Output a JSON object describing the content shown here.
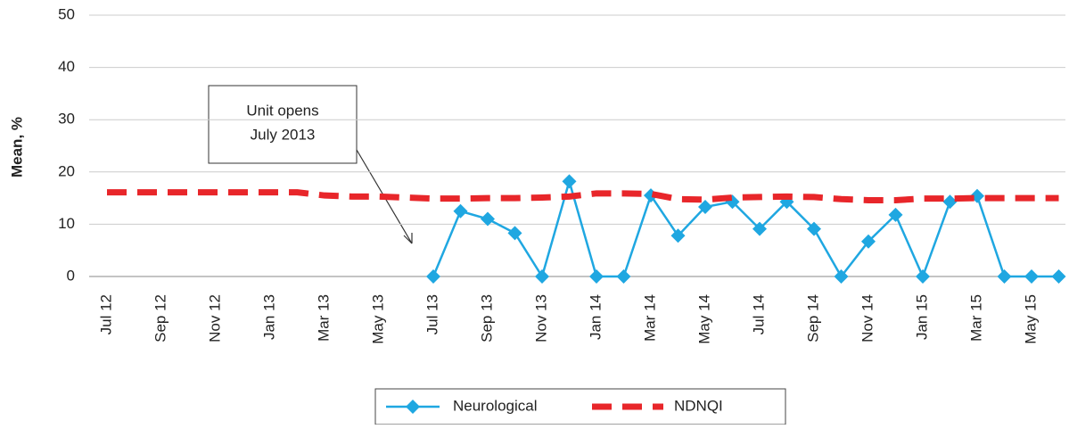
{
  "chart_data": {
    "type": "line",
    "y_label": "Mean, %",
    "annotation": [
      "Unit opens",
      "July 2013"
    ],
    "categories": [
      "Jul 12",
      null,
      "Sep 12",
      null,
      "Nov 12",
      null,
      "Jan 13",
      null,
      "Mar 13",
      null,
      "May 13",
      null,
      "Jul 13",
      null,
      "Sep 13",
      null,
      "Nov 13",
      null,
      "Jan 14",
      null,
      "Mar 14",
      null,
      "May 14",
      null,
      "Jul 14",
      null,
      "Sep 14",
      null,
      "Nov 14",
      null,
      "Jan 15",
      null,
      "Mar 15",
      null,
      "May 15",
      null
    ],
    "series": [
      {
        "name": "Neurological",
        "color": "#1fa7e1",
        "style": "solid-diamond",
        "values": [
          null,
          null,
          null,
          null,
          null,
          null,
          null,
          null,
          null,
          null,
          null,
          null,
          0,
          12.5,
          11,
          8.3,
          0,
          18.2,
          0,
          0,
          15.5,
          7.8,
          13.3,
          14.3,
          9.1,
          14.3,
          9.1,
          0,
          6.7,
          11.8,
          0,
          14.3,
          15.4,
          0,
          0,
          0
        ]
      },
      {
        "name": "NDNQI",
        "color": "#e8262a",
        "style": "dashed",
        "values": [
          16.1,
          16.1,
          16.1,
          16.1,
          16.1,
          16.1,
          16.1,
          16.1,
          15.5,
          15.3,
          15.3,
          15.1,
          14.9,
          14.9,
          15,
          15,
          15.1,
          15.3,
          15.9,
          15.9,
          15.8,
          14.8,
          14.7,
          15.1,
          15.2,
          15.3,
          15.2,
          14.8,
          14.6,
          14.6,
          14.9,
          14.9,
          15,
          15,
          15,
          15
        ]
      }
    ],
    "ylim": [
      0,
      50
    ],
    "yticks": [
      0,
      10,
      20,
      30,
      40,
      50
    ],
    "grid": true,
    "legend": "bottom"
  }
}
